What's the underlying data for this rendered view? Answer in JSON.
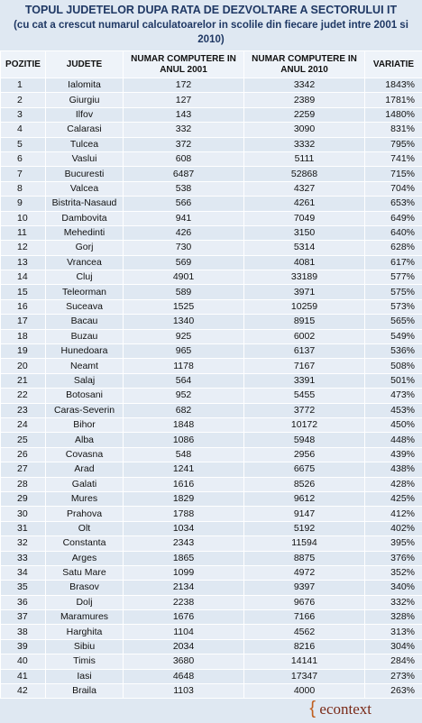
{
  "header": {
    "title": "TOPUL JUDETELOR DUPA RATA DE DEZVOLTARE A SECTORULUI IT",
    "subtitle": "(cu cat a crescut numarul calculatoarelor in scolile din fiecare judet intre 2001 si 2010)"
  },
  "table": {
    "columns": [
      "POZITIE",
      "JUDETE",
      "NUMAR COMPUTERE IN ANUL 2001",
      "NUMAR COMPUTERE IN ANUL 2010",
      "VARIATIE"
    ],
    "rows": [
      [
        1,
        "Ialomita",
        172,
        3342,
        "1843%"
      ],
      [
        2,
        "Giurgiu",
        127,
        2389,
        "1781%"
      ],
      [
        3,
        "Ilfov",
        143,
        2259,
        "1480%"
      ],
      [
        4,
        "Calarasi",
        332,
        3090,
        "831%"
      ],
      [
        5,
        "Tulcea",
        372,
        3332,
        "795%"
      ],
      [
        6,
        "Vaslui",
        608,
        5111,
        "741%"
      ],
      [
        7,
        "Bucuresti",
        6487,
        52868,
        "715%"
      ],
      [
        8,
        "Valcea",
        538,
        4327,
        "704%"
      ],
      [
        9,
        "Bistrita-Nasaud",
        566,
        4261,
        "653%"
      ],
      [
        10,
        "Dambovita",
        941,
        7049,
        "649%"
      ],
      [
        11,
        "Mehedinti",
        426,
        3150,
        "640%"
      ],
      [
        12,
        "Gorj",
        730,
        5314,
        "628%"
      ],
      [
        13,
        "Vrancea",
        569,
        4081,
        "617%"
      ],
      [
        14,
        "Cluj",
        4901,
        33189,
        "577%"
      ],
      [
        15,
        "Teleorman",
        589,
        3971,
        "575%"
      ],
      [
        16,
        "Suceava",
        1525,
        10259,
        "573%"
      ],
      [
        17,
        "Bacau",
        1340,
        8915,
        "565%"
      ],
      [
        18,
        "Buzau",
        925,
        6002,
        "549%"
      ],
      [
        19,
        "Hunedoara",
        965,
        6137,
        "536%"
      ],
      [
        20,
        "Neamt",
        1178,
        7167,
        "508%"
      ],
      [
        21,
        "Salaj",
        564,
        3391,
        "501%"
      ],
      [
        22,
        "Botosani",
        952,
        5455,
        "473%"
      ],
      [
        23,
        "Caras-Severin",
        682,
        3772,
        "453%"
      ],
      [
        24,
        "Bihor",
        1848,
        10172,
        "450%"
      ],
      [
        25,
        "Alba",
        1086,
        5948,
        "448%"
      ],
      [
        26,
        "Covasna",
        548,
        2956,
        "439%"
      ],
      [
        27,
        "Arad",
        1241,
        6675,
        "438%"
      ],
      [
        28,
        "Galati",
        1616,
        8526,
        "428%"
      ],
      [
        29,
        "Mures",
        1829,
        9612,
        "425%"
      ],
      [
        30,
        "Prahova",
        1788,
        9147,
        "412%"
      ],
      [
        31,
        "Olt",
        1034,
        5192,
        "402%"
      ],
      [
        32,
        "Constanta",
        2343,
        11594,
        "395%"
      ],
      [
        33,
        "Arges",
        1865,
        8875,
        "376%"
      ],
      [
        34,
        "Satu Mare",
        1099,
        4972,
        "352%"
      ],
      [
        35,
        "Brasov",
        2134,
        9397,
        "340%"
      ],
      [
        36,
        "Dolj",
        2238,
        9676,
        "332%"
      ],
      [
        37,
        "Maramures",
        1676,
        7166,
        "328%"
      ],
      [
        38,
        "Harghita",
        1104,
        4562,
        "313%"
      ],
      [
        39,
        "Sibiu",
        2034,
        8216,
        "304%"
      ],
      [
        40,
        "Timis",
        3680,
        14141,
        "284%"
      ],
      [
        41,
        "Iasi",
        4648,
        17347,
        "273%"
      ],
      [
        42,
        "Braila",
        1103,
        4000,
        "263%"
      ]
    ]
  },
  "footer": {
    "logo": "econtext"
  }
}
